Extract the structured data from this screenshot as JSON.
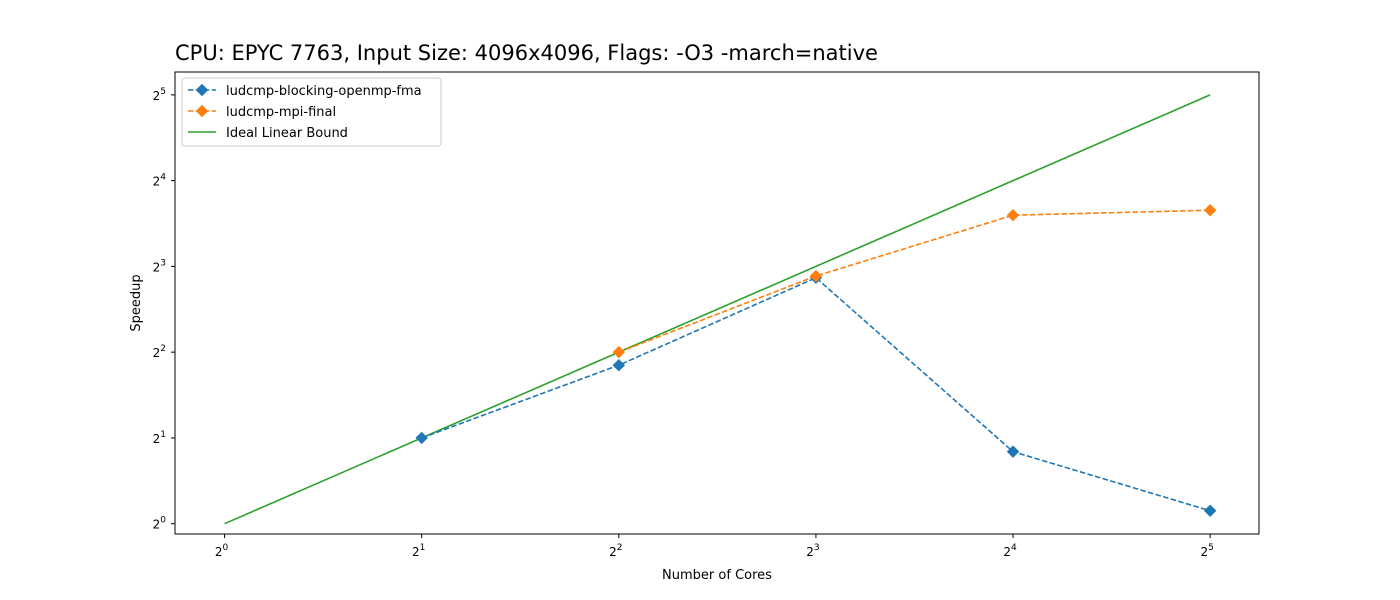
{
  "chart_data": {
    "type": "line",
    "title": "CPU: EPYC 7763, Input Size: 4096x4096, Flags: -O3 -march=native",
    "xlabel": "Number of Cores",
    "ylabel": "Speedup",
    "xscale": "log2",
    "yscale": "log2",
    "x": [
      1,
      2,
      4,
      8,
      16,
      32
    ],
    "x_ticks": [
      {
        "base": "2",
        "exp": "0"
      },
      {
        "base": "2",
        "exp": "1"
      },
      {
        "base": "2",
        "exp": "2"
      },
      {
        "base": "2",
        "exp": "3"
      },
      {
        "base": "2",
        "exp": "4"
      },
      {
        "base": "2",
        "exp": "5"
      }
    ],
    "y_ticks": [
      {
        "base": "2",
        "exp": "0"
      },
      {
        "base": "2",
        "exp": "1"
      },
      {
        "base": "2",
        "exp": "2"
      },
      {
        "base": "2",
        "exp": "3"
      },
      {
        "base": "2",
        "exp": "4"
      },
      {
        "base": "2",
        "exp": "5"
      }
    ],
    "xlim": [
      0.84,
      38
    ],
    "ylim": [
      0.92,
      38.5
    ],
    "grid": false,
    "legend_position": "top-left",
    "series": [
      {
        "name": "ludcmp-blocking-openmp-fma",
        "color": "#1f77b4",
        "style": "dashed",
        "marker": "diamond",
        "x": [
          2,
          4,
          8,
          16,
          32
        ],
        "y": [
          2.0,
          3.6,
          7.3,
          1.79,
          1.11
        ]
      },
      {
        "name": "ludcmp-mpi-final",
        "color": "#ff7f0e",
        "style": "dashed",
        "marker": "diamond",
        "x": [
          4,
          8,
          16,
          32
        ],
        "y": [
          4.0,
          7.4,
          12.1,
          12.6
        ]
      },
      {
        "name": "Ideal Linear Bound",
        "color": "#2ca02c",
        "style": "solid",
        "marker": "none",
        "x": [
          1,
          32
        ],
        "y": [
          1,
          32
        ]
      }
    ]
  }
}
